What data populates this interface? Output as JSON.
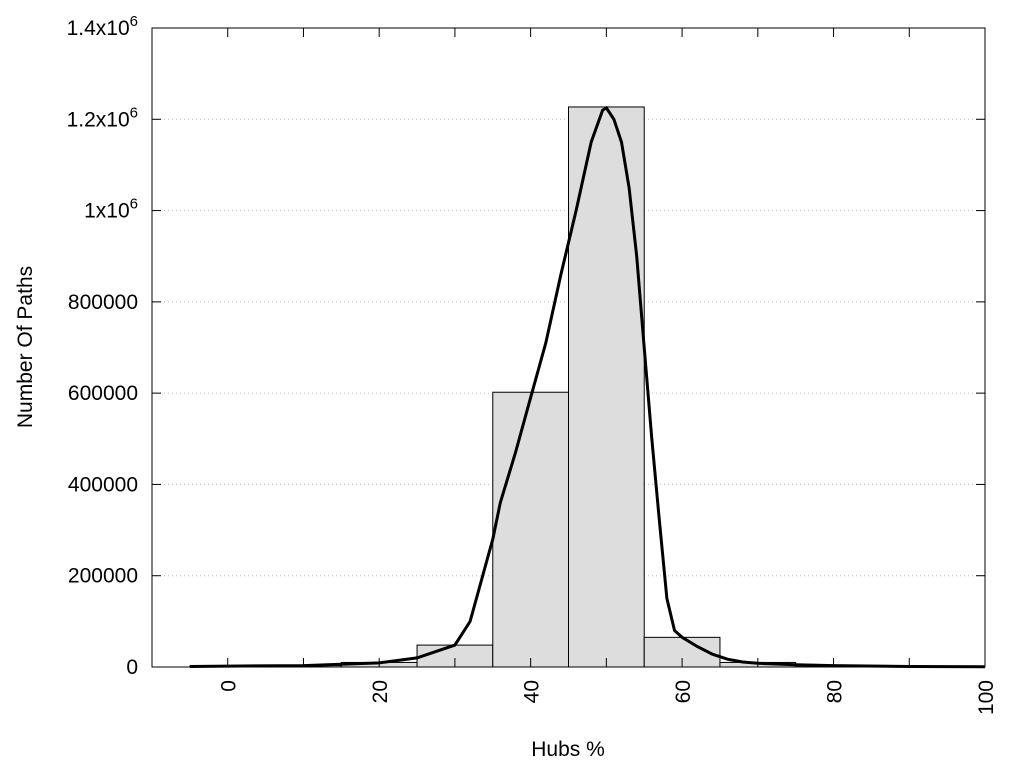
{
  "chart_data": {
    "type": "bar",
    "title": "",
    "xlabel": "Hubs %",
    "ylabel": "Number Of Paths",
    "xlim": [
      -10,
      100
    ],
    "ylim": [
      0,
      1400000
    ],
    "bar_width": 10,
    "grid": "horizontal dotted",
    "x_ticks": [
      0,
      20,
      40,
      60,
      80,
      100
    ],
    "x_tick_labels": [
      "0",
      "20",
      "40",
      "60",
      "80",
      "100"
    ],
    "y_ticks": [
      0,
      200000,
      400000,
      600000,
      800000,
      1000000,
      1200000,
      1400000
    ],
    "y_tick_labels": [
      {
        "base": "0",
        "exp": ""
      },
      {
        "base": "200000",
        "exp": ""
      },
      {
        "base": "400000",
        "exp": ""
      },
      {
        "base": "600000",
        "exp": ""
      },
      {
        "base": "800000",
        "exp": ""
      },
      {
        "base": "1x10",
        "exp": "6"
      },
      {
        "base": "1.2x10",
        "exp": "6"
      },
      {
        "base": "1.4x10",
        "exp": "6"
      }
    ],
    "bars": {
      "x": [
        0,
        10,
        20,
        30,
        40,
        50,
        60,
        70,
        80,
        90,
        100
      ],
      "values": [
        2000,
        3000,
        10000,
        48000,
        602000,
        1227000,
        65000,
        10000,
        3000,
        1000,
        1000
      ],
      "color": "#dddddd"
    },
    "curve": {
      "x": [
        -5,
        0,
        10,
        20,
        25,
        30,
        32,
        34,
        35,
        36,
        38,
        40,
        42,
        44,
        46,
        48,
        49.5,
        50,
        51,
        52,
        53,
        54,
        55,
        56,
        57,
        58,
        59,
        60,
        62,
        64,
        66,
        68,
        70,
        75,
        80,
        90,
        100
      ],
      "y": [
        1000,
        2000,
        3000,
        9000,
        20000,
        48000,
        100000,
        220000,
        280000,
        360000,
        470000,
        590000,
        710000,
        860000,
        1000000,
        1150000,
        1220000,
        1225000,
        1200000,
        1150000,
        1050000,
        900000,
        700000,
        500000,
        320000,
        150000,
        80000,
        65000,
        45000,
        28000,
        17000,
        11000,
        8000,
        5000,
        3000,
        1000,
        500
      ],
      "color": "#000000"
    }
  }
}
